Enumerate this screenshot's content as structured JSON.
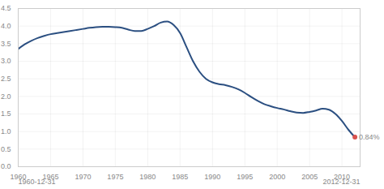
{
  "chart_data": {
    "type": "line",
    "x": [
      1960,
      1961,
      1962,
      1963,
      1964,
      1965,
      1966,
      1967,
      1968,
      1969,
      1970,
      1971,
      1972,
      1973,
      1974,
      1975,
      1976,
      1977,
      1978,
      1979,
      1980,
      1981,
      1982,
      1983,
      1984,
      1985,
      1986,
      1987,
      1988,
      1989,
      1990,
      1991,
      1992,
      1993,
      1994,
      1995,
      1996,
      1997,
      1998,
      1999,
      2000,
      2001,
      2002,
      2003,
      2004,
      2005,
      2006,
      2007,
      2008,
      2009,
      2010,
      2011,
      2012
    ],
    "values": [
      3.35,
      3.48,
      3.58,
      3.66,
      3.72,
      3.77,
      3.8,
      3.83,
      3.86,
      3.89,
      3.92,
      3.95,
      3.97,
      3.98,
      3.98,
      3.97,
      3.95,
      3.9,
      3.86,
      3.86,
      3.92,
      4.0,
      4.1,
      4.13,
      4.03,
      3.8,
      3.4,
      3.0,
      2.7,
      2.5,
      2.4,
      2.35,
      2.32,
      2.27,
      2.2,
      2.1,
      1.98,
      1.87,
      1.78,
      1.72,
      1.67,
      1.63,
      1.58,
      1.54,
      1.53,
      1.56,
      1.6,
      1.65,
      1.62,
      1.5,
      1.3,
      1.05,
      0.84
    ],
    "color": "#2b4f81",
    "xlim": [
      1960,
      2012.8
    ],
    "xticks": [
      1960,
      1965,
      1970,
      1975,
      1980,
      1985,
      1990,
      1995,
      2000,
      2005,
      2010
    ],
    "ylim": [
      0,
      4.5
    ],
    "yticks": [
      0,
      0.5,
      1,
      1.5,
      2,
      2.5,
      3,
      3.5,
      4,
      4.5
    ],
    "grid": true,
    "annotations": [
      {
        "text": "0.84%",
        "x": 2012,
        "y": 0.84,
        "color": "#d9534f"
      }
    ],
    "date_labels": [
      "1960-12-31",
      "2012-12-31"
    ]
  }
}
